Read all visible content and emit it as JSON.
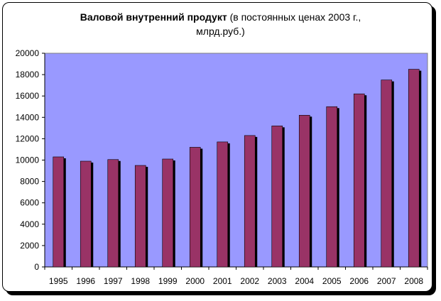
{
  "chart_data": {
    "type": "bar",
    "title_bold": "Валовой внутренний продукт",
    "title_rest_line1": " (в постоянных ценах 2003 г.,",
    "title_line2": "млрд.руб.)",
    "categories": [
      "1995",
      "1996",
      "1997",
      "1998",
      "1999",
      "2000",
      "2001",
      "2002",
      "2003",
      "2004",
      "2005",
      "2006",
      "2007",
      "2008"
    ],
    "values": [
      10300,
      9900,
      10050,
      9500,
      10100,
      11200,
      11700,
      12300,
      13200,
      14200,
      15000,
      16200,
      17500,
      18500
    ],
    "ylim": [
      0,
      20000
    ],
    "yticks": [
      0,
      2000,
      4000,
      6000,
      8000,
      10000,
      12000,
      14000,
      16000,
      18000,
      20000
    ],
    "grid": false,
    "legend": "none",
    "colors": {
      "plot_background": "#9999ff",
      "bar_fill": "#993366",
      "bar_shadow": "#000000",
      "axis": "#000000"
    }
  }
}
